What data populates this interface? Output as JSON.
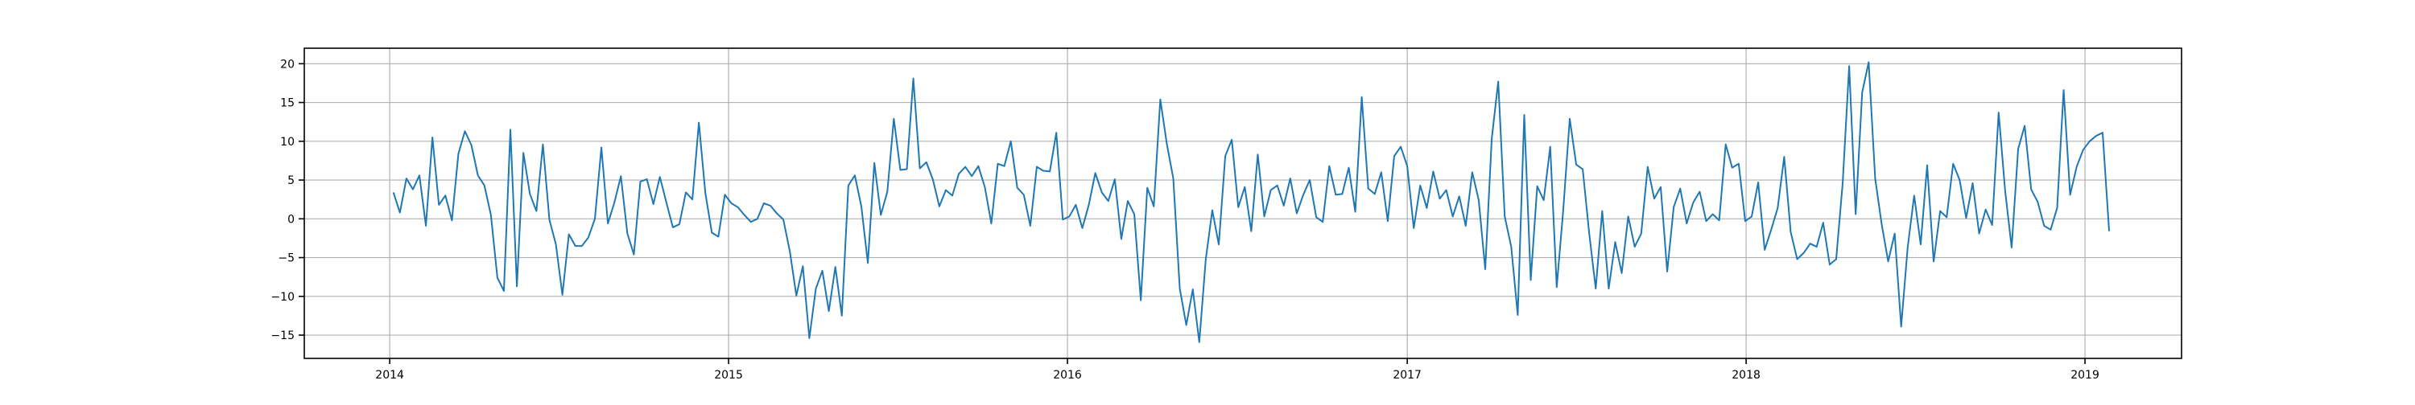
{
  "chart_data": {
    "type": "line",
    "title": "",
    "xlabel": "",
    "ylabel": "",
    "grid": true,
    "legend": "none",
    "xlim": [
      "2013-10-01",
      "2019-04-15"
    ],
    "ylim": [
      -18,
      22
    ],
    "x_ticks": [
      "2014",
      "2015",
      "2016",
      "2017",
      "2018",
      "2019"
    ],
    "y_ticks": [
      20,
      15,
      10,
      5,
      0,
      -5,
      -10,
      -15
    ],
    "y_tick_labels": [
      "20",
      "15",
      "10",
      "5",
      "0",
      "−5",
      "−10",
      "−15"
    ],
    "colors": {
      "line": "#1f77b4",
      "grid": "#b0b0b0",
      "axis": "#000000"
    },
    "series": [
      {
        "x_start": "2014-01-05",
        "x_step": "weekly",
        "values": [
          3.4,
          0.8,
          5.2,
          3.8,
          5.6,
          -0.9,
          10.5,
          1.8,
          3.0,
          -0.2,
          8.4,
          11.3,
          9.5,
          5.6,
          4.3,
          0.5,
          -7.6,
          -9.3,
          11.5,
          -8.7,
          8.5,
          3.2,
          1.0,
          9.6,
          -0.1,
          -3.3,
          -9.8,
          -2.0,
          -3.5,
          -3.5,
          -2.4,
          0.0,
          9.2,
          -0.6,
          2.1,
          5.5,
          -1.9,
          -4.6,
          4.8,
          5.1,
          1.9,
          5.4,
          2.1,
          -1.1,
          -0.7,
          3.4,
          2.5,
          12.4,
          3.3,
          -1.8,
          -2.3,
          3.1,
          2.0,
          1.5,
          0.5,
          -0.4,
          0.0,
          2.0,
          1.7,
          0.7,
          -0.1,
          -4.2,
          -9.9,
          -6.1,
          -15.4,
          -9.0,
          -6.7,
          -11.9,
          -6.2,
          -12.5,
          4.3,
          5.6,
          1.6,
          -5.7,
          7.2,
          0.5,
          3.5,
          12.9,
          6.3,
          6.4,
          18.1,
          6.5,
          7.3,
          5.1,
          1.6,
          3.7,
          3.0,
          5.8,
          6.7,
          5.5,
          6.8,
          4.1,
          -0.6,
          7.1,
          6.8,
          10.0,
          4.0,
          3.1,
          -0.9,
          6.7,
          6.2,
          6.1,
          11.1,
          -0.1,
          0.3,
          1.8,
          -1.2,
          1.8,
          5.9,
          3.4,
          2.3,
          5.1,
          -2.6,
          2.3,
          0.6,
          -10.5,
          4.0,
          1.6,
          15.4,
          9.7,
          5.2,
          -9.0,
          -13.7,
          -9.1,
          -15.9,
          -5.2,
          1.1,
          -3.3,
          8.1,
          10.2,
          1.5,
          4.1,
          -1.6,
          8.3,
          0.3,
          3.7,
          4.3,
          1.7,
          5.2,
          0.7,
          3.1,
          5.0,
          0.2,
          -0.4,
          6.8,
          3.1,
          3.2,
          6.6,
          0.9,
          15.7,
          3.9,
          3.2,
          6.0,
          -0.3,
          8.1,
          9.3,
          6.8,
          -1.2,
          4.3,
          1.4,
          6.1,
          2.6,
          3.7,
          0.3,
          2.9,
          -0.9,
          6.0,
          2.4,
          -6.5,
          10.3,
          17.7,
          0.3,
          -3.6,
          -12.4,
          13.4,
          -7.9,
          4.2,
          2.4,
          9.3,
          -8.8,
          1.1,
          12.9,
          7.0,
          6.4,
          -1.9,
          -9.0,
          1.0,
          -9.0,
          -3.0,
          -7.0,
          0.3,
          -3.6,
          -1.9,
          6.7,
          2.6,
          4.1,
          -6.8,
          1.5,
          3.9,
          -0.6,
          2.1,
          3.5,
          -0.3,
          0.6,
          -0.2,
          9.6,
          6.6,
          7.1,
          -0.3,
          0.3,
          4.7,
          -4.0,
          -1.4,
          1.4,
          8.0,
          -1.7,
          -5.2,
          -4.4,
          -3.2,
          -3.6,
          -0.5,
          -5.9,
          -5.2,
          4.6,
          19.7,
          0.6,
          16.3,
          20.2,
          5.2,
          -0.7,
          -5.5,
          -1.9,
          -13.9,
          -3.7,
          3.0,
          -3.3,
          6.9,
          -5.5,
          1.0,
          0.2,
          7.1,
          5.0,
          0.1,
          4.6,
          -1.9,
          1.2,
          -0.8,
          13.7,
          3.6,
          -3.7,
          9.0,
          12.0,
          3.8,
          2.2,
          -0.9,
          -1.4,
          1.4,
          16.6,
          3.1,
          6.7,
          8.9,
          10.0,
          10.7,
          11.1,
          -1.6
        ]
      }
    ]
  }
}
